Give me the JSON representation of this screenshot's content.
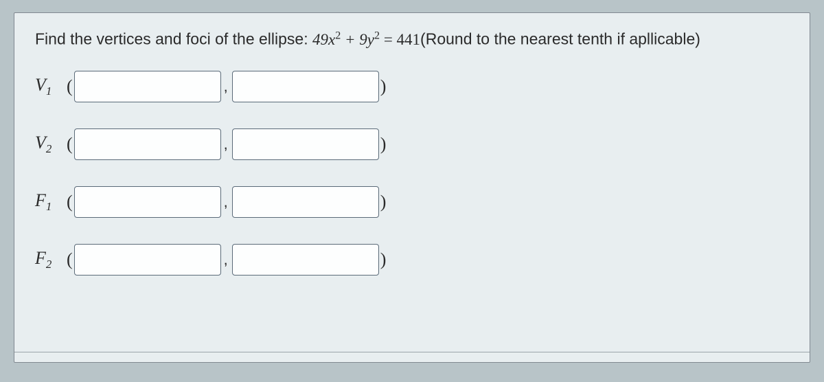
{
  "question": {
    "prefix": "Find the vertices and foci of the ellipse: ",
    "coef1": "49",
    "var1": "x",
    "exp1": "2",
    "plus": " + ",
    "coef2": "9",
    "var2": "y",
    "exp2": "2",
    "equals": " = ",
    "rhs": "441",
    "suffix": "(Round to the nearest tenth if apllicable)"
  },
  "rows": [
    {
      "label_main": "V",
      "label_sub": "1"
    },
    {
      "label_main": "V",
      "label_sub": "2"
    },
    {
      "label_main": "F",
      "label_sub": "1"
    },
    {
      "label_main": "F",
      "label_sub": "2"
    }
  ],
  "inputs": {
    "v1x": "",
    "v1y": "",
    "v2x": "",
    "v2y": "",
    "f1x": "",
    "f1y": "",
    "f2x": "",
    "f2y": ""
  },
  "style": {
    "card_bg": "#e8eef0",
    "body_bg": "#b8c4c8",
    "border_color": "#808890",
    "input_border": "#5a6a78",
    "input_bg": "#fdfefe",
    "text_color": "#2a2a2a",
    "question_fontsize": 23,
    "label_fontsize": 26,
    "input_width": 214,
    "input_height": 46,
    "row_gap": 38
  }
}
